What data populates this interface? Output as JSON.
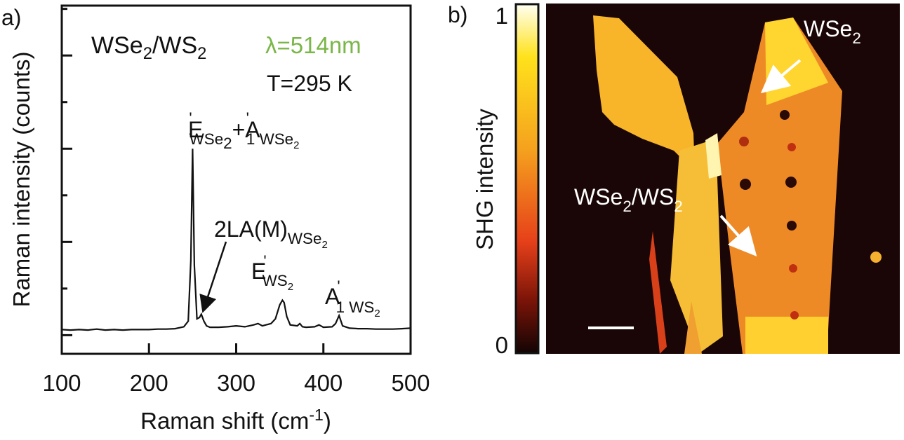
{
  "chart_data": [
    {
      "type": "line",
      "panel": "a)",
      "xlabel": [
        "Raman shift (cm",
        "-1",
        ")"
      ],
      "ylabel": "Raman intensity (counts)",
      "x": [
        100,
        110,
        120,
        130,
        140,
        150,
        160,
        170,
        180,
        190,
        200,
        210,
        220,
        230,
        240,
        245,
        248,
        250,
        252,
        255,
        258,
        260,
        263,
        266,
        270,
        280,
        290,
        300,
        310,
        320,
        325,
        330,
        340,
        345,
        350,
        353,
        355,
        358,
        362,
        370,
        373,
        376,
        380,
        390,
        395,
        400,
        410,
        414,
        418,
        422,
        430,
        440,
        450,
        460,
        470,
        480,
        490,
        500
      ],
      "values": [
        0.12,
        0.11,
        0.12,
        0.11,
        0.13,
        0.11,
        0.12,
        0.11,
        0.12,
        0.12,
        0.12,
        0.13,
        0.13,
        0.14,
        0.18,
        0.3,
        1.6,
        4.0,
        1.5,
        0.35,
        0.38,
        0.45,
        0.3,
        0.2,
        0.17,
        0.17,
        0.18,
        0.2,
        0.18,
        0.22,
        0.25,
        0.2,
        0.25,
        0.35,
        0.65,
        0.75,
        0.7,
        0.4,
        0.22,
        0.2,
        0.25,
        0.18,
        0.17,
        0.18,
        0.22,
        0.17,
        0.18,
        0.25,
        0.42,
        0.2,
        0.15,
        0.14,
        0.14,
        0.13,
        0.13,
        0.13,
        0.14,
        0.15
      ],
      "color": "#111111",
      "xlim": [
        100,
        500
      ],
      "xticks": [
        100,
        200,
        300,
        400,
        500
      ],
      "ylim": [
        -0.4,
        7.07
      ],
      "yticks": [
        0,
        1,
        2,
        3,
        4,
        5,
        6,
        7
      ],
      "annotations": [
        [
          "WSe",
          "2",
          "/",
          "WS",
          "2"
        ],
        [
          "λ=514nm"
        ],
        [
          "T=295 K"
        ],
        [
          "E",
          "'",
          "WSe",
          "2",
          "+A",
          "'",
          "1 WSe",
          "2"
        ],
        [
          "2LA(M)",
          "WSe",
          "2"
        ],
        [
          "E",
          "'",
          "WS",
          "2"
        ],
        [
          "A",
          "'",
          "1 WS",
          "2"
        ]
      ]
    },
    {
      "type": "heatmap",
      "panel": "b)",
      "colorbar_label": "SHG intensity",
      "colorbar_lim": [
        0,
        1
      ],
      "colorbar_ticks": [
        0,
        1
      ],
      "annotations": [
        [
          "WSe",
          "2"
        ],
        [
          "WSe",
          "2",
          "/WS",
          "2"
        ]
      ]
    }
  ]
}
